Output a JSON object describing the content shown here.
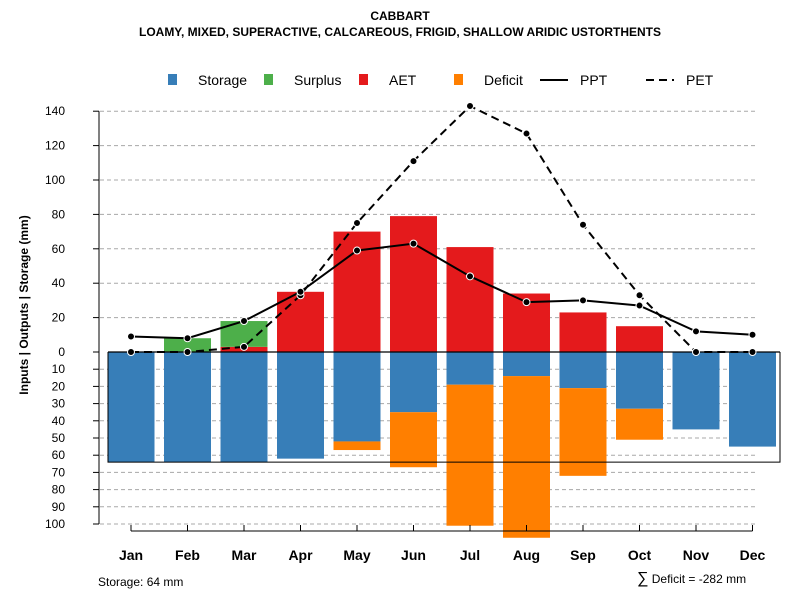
{
  "header": {
    "title": "CABBART",
    "subtitle": "LOAMY, MIXED, SUPERACTIVE, CALCAREOUS, FRIGID, SHALLOW ARIDIC USTORTHENTS"
  },
  "footer": {
    "storage_text": "Storage: 64 mm",
    "deficit_symbol": "∑",
    "deficit_text": "Deficit = -282 mm"
  },
  "chart_data": {
    "type": "bar",
    "title": "CABBART",
    "subtitle": "LOAMY, MIXED, SUPERACTIVE, CALCAREOUS, FRIGID, SHALLOW ARIDIC USTORTHENTS",
    "ylabel": "Inputs | Outputs | Storage    (mm)",
    "categories": [
      "Jan",
      "Feb",
      "Mar",
      "Apr",
      "May",
      "Jun",
      "Jul",
      "Aug",
      "Sep",
      "Oct",
      "Nov",
      "Dec"
    ],
    "upper_ylim": [
      0,
      150
    ],
    "lower_ylim": [
      0,
      100
    ],
    "upper_ticks": [
      "0",
      "20",
      "40",
      "60",
      "80",
      "100",
      "120",
      "140"
    ],
    "lower_ticks": [
      "10",
      "20",
      "30",
      "40",
      "50",
      "60",
      "70",
      "80",
      "90",
      "100"
    ],
    "legend": [
      {
        "label": "Storage",
        "kind": "box",
        "color": "#377EB8"
      },
      {
        "label": "Surplus",
        "kind": "box",
        "color": "#4DAF4A"
      },
      {
        "label": "AET",
        "kind": "box",
        "color": "#E41A1C"
      },
      {
        "label": "Deficit",
        "kind": "box",
        "color": "#FF7F00"
      },
      {
        "label": "PPT",
        "kind": "solid",
        "color": "#000000"
      },
      {
        "label": "PET",
        "kind": "dashed",
        "color": "#000000"
      }
    ],
    "storage_capacity": 64,
    "series": [
      {
        "name": "Storage",
        "values": [
          64,
          64,
          64,
          62,
          52,
          35,
          19,
          14,
          21,
          33,
          45,
          55
        ]
      },
      {
        "name": "Deficit",
        "values": [
          0,
          0,
          0,
          0,
          5,
          32,
          82,
          94,
          51,
          18,
          0,
          0
        ]
      },
      {
        "name": "AET",
        "values": [
          0,
          0,
          3,
          35,
          70,
          79,
          61,
          34,
          23,
          15,
          0,
          0
        ]
      },
      {
        "name": "Surplus",
        "values": [
          0,
          8,
          15,
          0,
          0,
          0,
          0,
          0,
          0,
          0,
          0,
          0
        ]
      },
      {
        "name": "PPT",
        "values": [
          9,
          8,
          18,
          35,
          59,
          63,
          44,
          29,
          30,
          27,
          12,
          10
        ]
      },
      {
        "name": "PET",
        "values": [
          0,
          0,
          3,
          33,
          75,
          111,
          143,
          127,
          74,
          33,
          0,
          0
        ]
      }
    ]
  }
}
